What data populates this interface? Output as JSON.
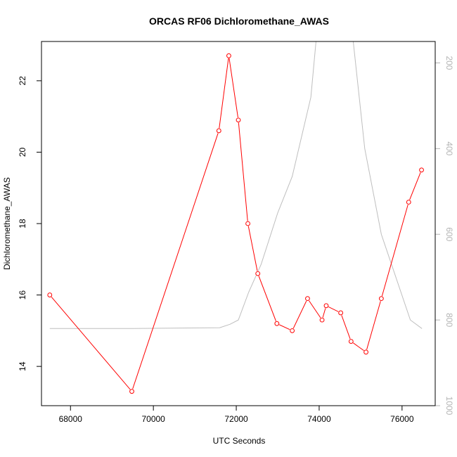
{
  "chart_data": {
    "type": "line",
    "title": "ORCAS RF06 Dichloromethane_AWAS",
    "xlabel": "UTC Seconds",
    "ylabel": "Dichloromethane_AWAS",
    "xlim": [
      67300,
      76800
    ],
    "ylim": [
      12.9,
      23.1
    ],
    "x_ticks": [
      68000,
      70000,
      72000,
      74000,
      76000
    ],
    "y_ticks": [
      14,
      16,
      18,
      20,
      22
    ],
    "y2lim": [
      1000,
      150
    ],
    "y2_ticks": [
      200,
      400,
      600,
      800,
      1000
    ],
    "series": [
      {
        "color": "#ff0000",
        "marker": "open-circle",
        "x": [
          67500,
          69480,
          71580,
          71820,
          72050,
          72280,
          72520,
          72980,
          73350,
          73720,
          74070,
          74170,
          74520,
          74770,
          75130,
          75500,
          76160,
          76470
        ],
        "y": [
          16.0,
          13.3,
          20.6,
          22.7,
          20.9,
          18.0,
          16.6,
          15.2,
          15.0,
          15.9,
          15.3,
          15.7,
          15.5,
          14.7,
          14.4,
          15.9,
          18.6,
          19.5
        ]
      },
      {
        "color": "#bebebe",
        "axis": "right",
        "x": [
          67500,
          69500,
          71600,
          71850,
          72050,
          72300,
          72600,
          73000,
          73350,
          73800,
          74000,
          74300,
          74700,
          75100,
          75500,
          76200,
          76480
        ],
        "y": [
          820,
          820,
          818,
          810,
          800,
          735,
          670,
          550,
          465,
          280,
          70,
          30,
          40,
          400,
          600,
          800,
          820
        ]
      }
    ]
  }
}
